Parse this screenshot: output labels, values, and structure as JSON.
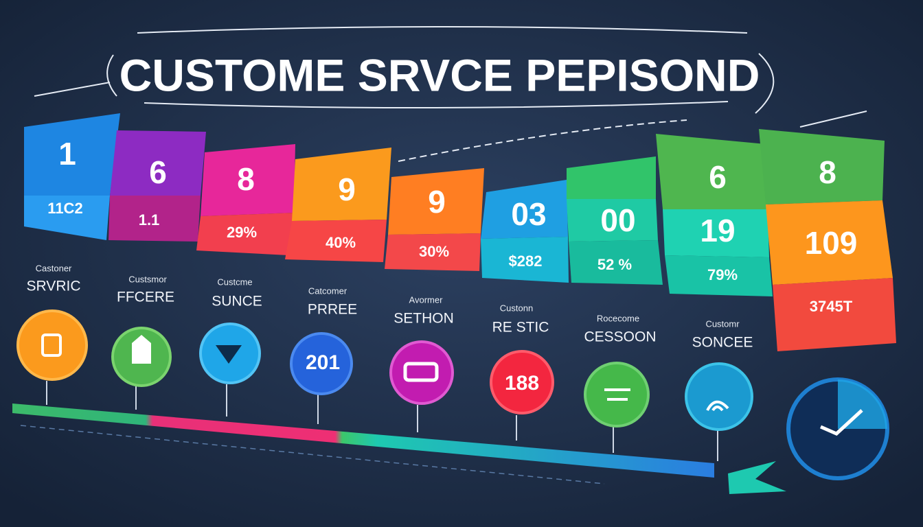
{
  "title": "CUSTOME SRVCE PEPISOND",
  "cards": [
    {
      "top": "1",
      "mid": "11C2"
    },
    {
      "top": "6",
      "mid": "1.1"
    },
    {
      "top": "8",
      "mid": "29%"
    },
    {
      "top": "9",
      "mid": "40%"
    },
    {
      "top": "9",
      "mid": "30%"
    },
    {
      "top": "03",
      "mid": "$282"
    },
    {
      "top": "00",
      "mid": "52 %"
    },
    {
      "top": "6",
      "mid": "19",
      "bottom": "79%"
    },
    {
      "top": "8",
      "mid": "109",
      "bottom": "3745T"
    }
  ],
  "labels": [
    {
      "small": "Castoner",
      "large": "SRVRIC"
    },
    {
      "small": "Custsmor",
      "large": "FFCERE"
    },
    {
      "small": "Custcme",
      "large": "SUNCE"
    },
    {
      "small": "Catcomer",
      "large": "PRREE"
    },
    {
      "small": "Avormer",
      "large": "SETHON"
    },
    {
      "small": "Custonn",
      "large": "RE STIC"
    },
    {
      "small": "Rocecome",
      "large": "CESSOON"
    },
    {
      "small": "Customr",
      "large": "SONCEE"
    }
  ],
  "circles": [
    "201",
    "188"
  ]
}
